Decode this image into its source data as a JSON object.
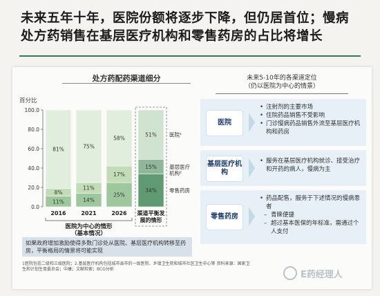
{
  "headline": {
    "line1": "未来五年十年，医院份额将逐步下降，但仍居首位；慢病",
    "line2": "处方药销售在基层医疗机构和零售药房的占比将增长"
  },
  "left_panel": {
    "chart_title": "处方药配药渠道细分",
    "y_unit": "百分比",
    "note": "如果政府增加激励使得多数门诊处从医院、基层医疗机构转移至药房，平衡格局的情景将可能实现",
    "footnote": "1医院包括二级和三级医院；2.基层医疗机构包括城市县市的一级医院、乡镇卫生院和城市社区卫生中心等 资料来源：国家卫生和计划生育委员会；中康；文献检索；BCG分析"
  },
  "chart_data": {
    "type": "bar",
    "stacked": true,
    "y_unit": "百分比",
    "ylim": [
      0,
      100
    ],
    "yticks": [
      "0.0",
      "20.0",
      "40.0",
      "60.0",
      "80.0",
      "100.0"
    ],
    "categories": [
      "2016",
      "2021",
      "2026",
      "渠道平衡发展的情形"
    ],
    "category_display": [
      "2016",
      "2021",
      "2026",
      "渠道平衡发\n展的情形"
    ],
    "group_label": "医院为中心的情形（基本情况）",
    "series": [
      {
        "name": "零售药房",
        "values": [
          11,
          14,
          25,
          34
        ],
        "labels": [
          "11%",
          "14%",
          "25%",
          "34%"
        ],
        "colors": [
          "#9ec79e",
          "#9ec79e",
          "#9ec79e",
          "#5f9a72"
        ]
      },
      {
        "name": "基层医疗机构²",
        "values": [
          8,
          11,
          17,
          15
        ],
        "labels": [
          "8%",
          "11%",
          "17%",
          "15%"
        ],
        "colors": [
          "#c2dcb8",
          "#c2dcb8",
          "#c2dcb8",
          "#8fb79a"
        ]
      },
      {
        "name": "医院¹",
        "values": [
          81,
          75,
          58,
          51
        ],
        "labels": [
          "81%",
          "75%",
          "58%",
          "51%"
        ],
        "colors": [
          "#e2eedd",
          "#e2eedd",
          "#e2eedd",
          "#d0e3d0"
        ]
      }
    ]
  },
  "right_panel": {
    "title_line1": "未来5-10年的各渠道定位",
    "title_line2": "（仍以医院为中心的情景）",
    "panels": [
      {
        "label": "医院",
        "items": [
          {
            "text": "注射剂的主要市场",
            "sub": false
          },
          {
            "text": "住院药品销售不受影响",
            "sub": false
          },
          {
            "text": "门诊慢病药品销售外流至基层医疗机构和药房",
            "sub": false
          }
        ]
      },
      {
        "label": "基层医疗机构",
        "items": [
          {
            "text": "服务在基层医疗机构就诊、接受治疗和开药的病人，慢病为主",
            "sub": false
          }
        ]
      },
      {
        "label": "零售药房",
        "items": [
          {
            "text": "药品配售，服务于下述情况的慢病患者",
            "sub": false
          },
          {
            "text": "青睐便捷",
            "sub": true
          },
          {
            "text": "超过基本医保的年标准，需通过个人支付",
            "sub": true
          }
        ]
      }
    ]
  },
  "watermark": "E药经理人"
}
